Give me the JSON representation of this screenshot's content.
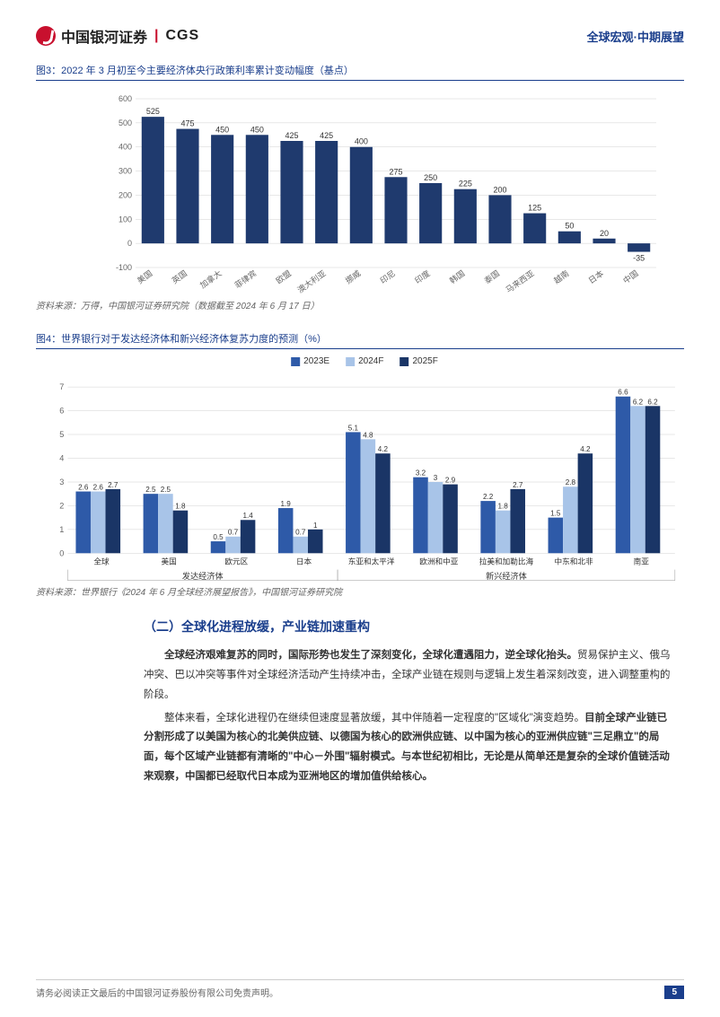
{
  "header": {
    "brand_cn": "中国银河证券",
    "brand_en": "CGS",
    "doc_tag": "全球宏观·中期展望"
  },
  "chart1": {
    "title": "图3：2022 年 3 月初至今主要经济体央行政策利率累计变动幅度（基点）",
    "type": "bar",
    "categories": [
      "美国",
      "英国",
      "加拿大",
      "菲律宾",
      "欧盟",
      "澳大利亚",
      "挪威",
      "印尼",
      "印度",
      "韩国",
      "泰国",
      "马来西亚",
      "越南",
      "日本",
      "中国"
    ],
    "values": [
      525,
      475,
      450,
      450,
      425,
      425,
      400,
      275,
      250,
      225,
      200,
      125,
      50,
      20,
      -35
    ],
    "bar_color": "#1f3a6e",
    "ylim": [
      -100,
      600
    ],
    "ytick_step": 100,
    "background_color": "#ffffff",
    "grid_color": "#d0d0d0",
    "label_fontsize": 9,
    "source": "资料来源：万得，中国银河证券研究院（数据截至 2024 年 6 月 17 日）"
  },
  "chart2": {
    "title": "图4：世界银行对于发达经济体和新兴经济体复苏力度的预测（%）",
    "type": "grouped-bar",
    "series": [
      {
        "name": "2023E",
        "color": "#2e5aa8"
      },
      {
        "name": "2024F",
        "color": "#a8c4e8"
      },
      {
        "name": "2025F",
        "color": "#1a3566"
      }
    ],
    "groups": [
      {
        "label": "发达经济体",
        "items": [
          "全球",
          "美国",
          "欧元区",
          "日本"
        ]
      },
      {
        "label": "新兴经济体",
        "items": [
          "东亚和太平洋",
          "欧洲和中亚",
          "拉美和加勒比海",
          "中东和北非",
          "南亚"
        ]
      }
    ],
    "categories": [
      "全球",
      "美国",
      "欧元区",
      "日本",
      "东亚和太平洋",
      "欧洲和中亚",
      "拉美和加勒比海",
      "中东和北非",
      "南亚"
    ],
    "data": {
      "2023E": [
        2.6,
        2.5,
        0.5,
        1.9,
        5.1,
        3.2,
        2.2,
        1.5,
        6.6
      ],
      "2024F": [
        2.6,
        2.5,
        0.7,
        0.7,
        4.8,
        3,
        1.8,
        2.8,
        6.2
      ],
      "2025F": [
        2.7,
        1.8,
        1.4,
        1,
        4.2,
        2.9,
        2.7,
        4.2,
        6.2
      ]
    },
    "ylim": [
      0,
      7
    ],
    "ytick_step": 1,
    "background_color": "#ffffff",
    "grid_color": "#d0d0d0",
    "source": "资料来源：世界银行《2024 年 6 月全球经济展望报告》，中国银河证券研究院"
  },
  "section": {
    "title": "（二）全球化进程放缓，产业链加速重构",
    "p1_bold": "全球经济艰难复苏的同时，国际形势也发生了深刻变化，全球化遭遇阻力，逆全球化抬头。",
    "p1_rest": "贸易保护主义、俄乌冲突、巴以冲突等事件对全球经济活动产生持续冲击，全球产业链在规则与逻辑上发生着深刻改变，进入调整重构的阶段。",
    "p2_a": "整体来看，全球化进程仍在继续但速度显著放缓，其中伴随着一定程度的\"区域化\"演变趋势。",
    "p2_bold": "目前全球产业链已分割形成了以美国为核心的北美供应链、以德国为核心的欧洲供应链、以中国为核心的亚洲供应链\"三足鼎立\"的局面，每个区域产业链都有清晰的\"中心－外围\"辐射模式。与本世纪初相比，无论是从简单还是复杂的全球价值链活动来观察，中国都已经取代日本成为亚洲地区的增加值供给核心。"
  },
  "footer": {
    "disclaimer": "请务必阅读正文最后的中国银河证券股份有限公司免责声明。",
    "page": "5"
  }
}
